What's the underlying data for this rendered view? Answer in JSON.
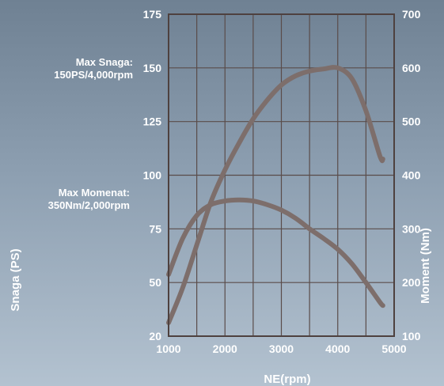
{
  "chart_data": {
    "type": "line",
    "xlabel": "NE(rpm)",
    "ylabel_left": "Snaga  (PS)",
    "ylabel_right": "Moment (Nm)",
    "x_ticks": [
      1000,
      2000,
      3000,
      4000,
      5000
    ],
    "x_range": [
      1000,
      5000
    ],
    "y_left_ticks": [
      20,
      50,
      75,
      100,
      125,
      150,
      175
    ],
    "y_right_ticks": [
      100,
      200,
      300,
      400,
      500,
      600,
      700
    ],
    "y_right_range": [
      100,
      700
    ],
    "grid": true,
    "annotations": {
      "max_power_line1": "Max Snaga:",
      "max_power_line2": "150PS/4,000rpm",
      "max_torque_line1": "Max Momenat:",
      "max_torque_line2": "350Nm/2,000rpm"
    },
    "series": [
      {
        "axis": "right",
        "color": "#7d6e6b",
        "x": [
          1000,
          1250,
          1500,
          1750,
          2000,
          2250,
          2500,
          2750,
          3000,
          3250,
          3500,
          3750,
          4000,
          4250,
          4500,
          4750,
          4800
        ],
        "values": [
          125,
          190,
          270,
          350,
          410,
          460,
          505,
          540,
          568,
          585,
          594,
          598,
          600,
          580,
          520,
          435,
          430
        ]
      },
      {
        "axis": "right",
        "color": "#7d6e6b",
        "x": [
          1000,
          1250,
          1500,
          1750,
          2000,
          2250,
          2500,
          2750,
          3000,
          3250,
          3500,
          3750,
          4000,
          4250,
          4500,
          4750,
          4800
        ],
        "values": [
          215,
          282,
          325,
          345,
          352,
          354,
          352,
          345,
          335,
          320,
          300,
          282,
          262,
          235,
          200,
          163,
          157
        ]
      }
    ]
  }
}
